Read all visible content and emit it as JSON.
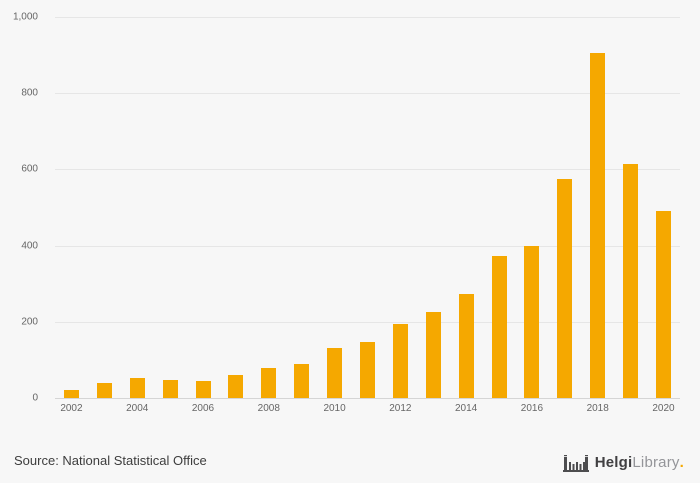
{
  "page": {
    "background": "#f7f7f7"
  },
  "chart_data": {
    "type": "bar",
    "title": "",
    "categories": [
      "2002",
      "2003",
      "2004",
      "2005",
      "2006",
      "2007",
      "2008",
      "2009",
      "2010",
      "2011",
      "2012",
      "2013",
      "2014",
      "2015",
      "2016",
      "2017",
      "2018",
      "2019",
      "2020"
    ],
    "values": [
      20,
      40,
      52,
      47,
      44,
      60,
      78,
      90,
      130,
      148,
      193,
      227,
      272,
      373,
      398,
      575,
      905,
      614,
      492
    ],
    "x_axis_labels_shown": [
      "2002",
      "2004",
      "2006",
      "2008",
      "2010",
      "2012",
      "2014",
      "2016",
      "2018",
      "2020"
    ],
    "y_ticks": [
      0,
      200,
      400,
      600,
      800,
      1000
    ],
    "y_tick_labels": [
      "0",
      "200",
      "400",
      "600",
      "800",
      "1,000"
    ],
    "ylim": [
      0,
      1000
    ],
    "xlabel": "",
    "ylabel": "",
    "grid": "horizontal",
    "legend": "none",
    "bar_color": "#f5a800"
  },
  "footer": {
    "source": "Source: National Statistical Office",
    "logo": {
      "brand_primary": "Helgi",
      "brand_secondary": "Library",
      "dot": "."
    }
  }
}
